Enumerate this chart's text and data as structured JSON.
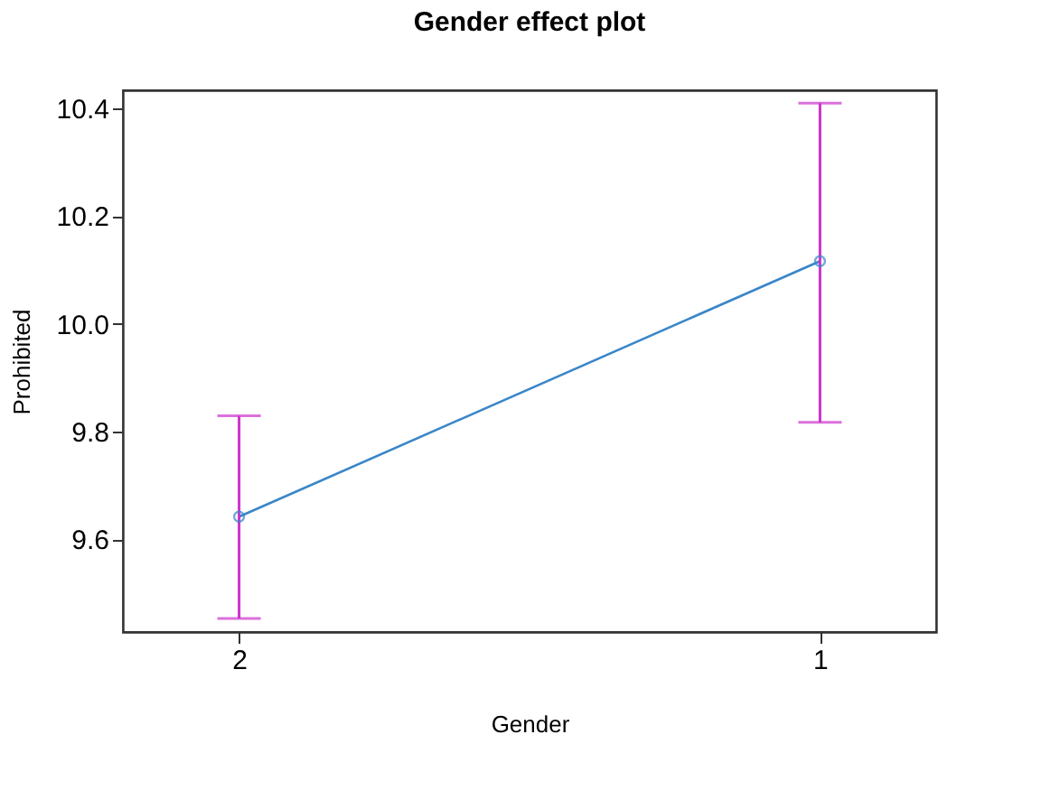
{
  "chart_data": {
    "type": "line",
    "title": "Gender effect plot",
    "xlabel": "Gender",
    "ylabel": "Prohibited",
    "categories": [
      "2",
      "1"
    ],
    "series": [
      {
        "color": "#3a86c8",
        "values": [
          9.642,
          10.116
        ],
        "errors": [
          [
            9.453,
            9.829
          ],
          [
            9.817,
            10.409
          ]
        ]
      }
    ],
    "ylim": [
      9.428,
      10.433
    ],
    "yticks": [
      9.6,
      9.8,
      {
        "value": 10,
        "label": "10.0"
      },
      10.2,
      10.4
    ],
    "marker": "circle",
    "line_style": "solid",
    "grid": false
  }
}
